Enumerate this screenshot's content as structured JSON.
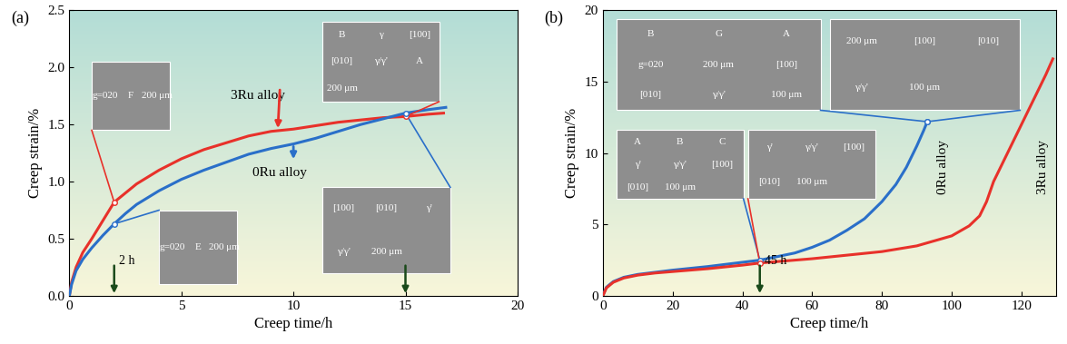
{
  "chart_data": [
    {
      "type": "line",
      "label": "(a)",
      "x_label": "Creep time/h",
      "y_label": "Creep strain/%",
      "xlim": [
        0,
        20
      ],
      "xticks": [
        0,
        5,
        10,
        15,
        20
      ],
      "ylim": [
        0,
        2.5
      ],
      "yticks": [
        {
          "value": 0,
          "label": "0.0"
        },
        {
          "value": 0.5,
          "label": "0.5"
        },
        {
          "value": 1.0,
          "label": "1.0"
        },
        {
          "value": 1.5,
          "label": "1.5"
        },
        {
          "value": 2.0,
          "label": "2.0"
        },
        {
          "value": 2.5,
          "label": "2.5"
        }
      ],
      "series": [
        {
          "name": "3Ru alloy",
          "color": "#e8312a",
          "x": [
            0,
            0.1,
            0.3,
            0.6,
            1,
            1.5,
            2,
            2.5,
            3,
            4,
            5,
            6,
            7,
            8,
            9,
            10,
            11,
            12,
            13,
            14,
            15,
            16,
            16.7
          ],
          "values": [
            0,
            0.12,
            0.25,
            0.38,
            0.5,
            0.66,
            0.82,
            0.9,
            0.98,
            1.1,
            1.2,
            1.28,
            1.34,
            1.4,
            1.44,
            1.46,
            1.49,
            1.52,
            1.54,
            1.56,
            1.57,
            1.59,
            1.6
          ]
        },
        {
          "name": "0Ru alloy",
          "color": "#2a6fc9",
          "x": [
            0,
            0.1,
            0.3,
            0.6,
            1,
            1.5,
            2,
            2.5,
            3,
            4,
            5,
            6,
            7,
            8,
            9,
            10,
            11,
            12,
            13,
            14,
            15,
            16,
            16.8
          ],
          "values": [
            0,
            0.1,
            0.22,
            0.32,
            0.42,
            0.53,
            0.63,
            0.72,
            0.8,
            0.92,
            1.02,
            1.1,
            1.17,
            1.24,
            1.29,
            1.33,
            1.38,
            1.44,
            1.5,
            1.55,
            1.6,
            1.63,
            1.65
          ]
        }
      ],
      "markers": [
        {
          "x": 2,
          "label": "2 h"
        },
        {
          "x": 15
        }
      ],
      "insets": [
        {
          "series": "3Ru alloy",
          "time": 2,
          "strain": 0.82,
          "texts": [
            "g=020",
            "F",
            "200 μm"
          ]
        },
        {
          "series": "0Ru alloy",
          "time": 2,
          "strain": 0.63,
          "texts": [
            "g=020",
            "E",
            "200 μm"
          ]
        },
        {
          "series": "3Ru alloy",
          "time": 15,
          "strain": 1.57,
          "texts": [
            "B",
            "γ",
            "[100]",
            "[010]",
            "γ/γ'",
            "A",
            "200 μm"
          ]
        },
        {
          "series": "0Ru alloy",
          "time": 15,
          "strain": 1.6,
          "texts": [
            "[100]",
            "[010]",
            "γ'",
            "γ/γ'",
            "200 μm"
          ]
        }
      ]
    },
    {
      "type": "line",
      "label": "(b)",
      "x_label": "Creep time/h",
      "y_label": "Creep strain/%",
      "xlim": [
        0,
        130
      ],
      "xticks": [
        0,
        20,
        40,
        60,
        80,
        100,
        120
      ],
      "ylim": [
        0,
        20
      ],
      "yticks": [
        0,
        5,
        10,
        15,
        20
      ],
      "series": [
        {
          "name": "0Ru alloy",
          "color": "#2a6fc9",
          "x": [
            0,
            1,
            3,
            6,
            10,
            15,
            20,
            30,
            40,
            45,
            50,
            55,
            60,
            65,
            70,
            75,
            80,
            84,
            87,
            90,
            92,
            93
          ],
          "values": [
            0,
            0.6,
            1.0,
            1.3,
            1.5,
            1.65,
            1.8,
            2.05,
            2.35,
            2.5,
            2.75,
            3.0,
            3.4,
            3.9,
            4.6,
            5.4,
            6.6,
            7.8,
            9.0,
            10.5,
            11.6,
            12.2
          ]
        },
        {
          "name": "3Ru alloy",
          "color": "#e8312a",
          "x": [
            0,
            1,
            3,
            6,
            10,
            15,
            20,
            30,
            40,
            45,
            50,
            60,
            70,
            80,
            90,
            100,
            105,
            108,
            110,
            112,
            115,
            118,
            121,
            124,
            127,
            129
          ],
          "values": [
            0,
            0.55,
            0.95,
            1.25,
            1.45,
            1.6,
            1.7,
            1.9,
            2.15,
            2.3,
            2.4,
            2.6,
            2.85,
            3.1,
            3.5,
            4.2,
            4.9,
            5.6,
            6.6,
            8.0,
            9.5,
            11.0,
            12.5,
            14.0,
            15.5,
            16.6
          ]
        }
      ],
      "markers": [
        {
          "x": 45,
          "label": "45 h"
        }
      ],
      "insets": [
        {
          "series": "0Ru alloy",
          "time": 93,
          "strain": 12.2,
          "texts": [
            "B",
            "G",
            "A",
            "g=020",
            "200 μm",
            "[100]",
            "[010]",
            "γ/γ'",
            "100 μm"
          ]
        },
        {
          "series": "0Ru alloy",
          "time": 93,
          "strain": 12.2,
          "texts": [
            "200 μm",
            "[100]",
            "[010]",
            "γ/γ'",
            "100 μm"
          ]
        },
        {
          "series": "0Ru alloy",
          "time": 45,
          "strain": 2.5,
          "texts": [
            "A",
            "B",
            "C",
            "γ'",
            "γ/γ'",
            "[100]",
            "[010]",
            "100 μm"
          ]
        },
        {
          "series": "3Ru alloy",
          "time": 45,
          "strain": 2.3,
          "texts": [
            "γ'",
            "γ/γ'",
            "[100]",
            "[010]",
            "100 μm"
          ]
        }
      ]
    }
  ]
}
